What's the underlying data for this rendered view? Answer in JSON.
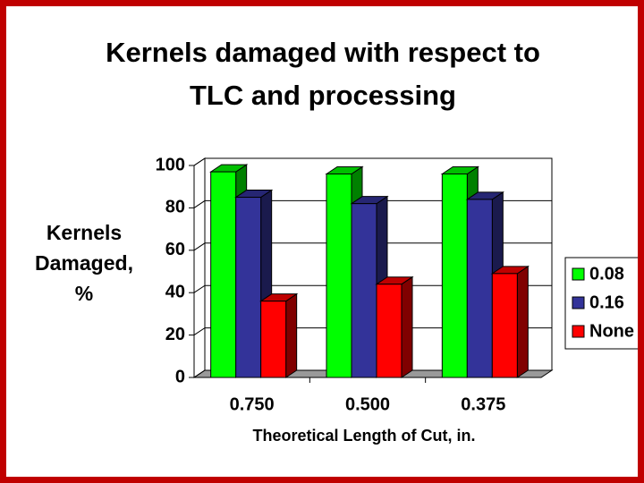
{
  "chart_data": {
    "type": "bar3d",
    "title": "Kernels damaged with respect to TLC and processing",
    "x_label": "Theoretical Length of Cut, in.",
    "y_label": "Kernels Damaged, %",
    "categories": [
      "0.750",
      "0.500",
      "0.375"
    ],
    "series": [
      {
        "name": "0.08",
        "color": "#00ff00",
        "values": [
          97,
          96,
          96
        ]
      },
      {
        "name": "0.16",
        "color": "#333399",
        "values": [
          85,
          82,
          84
        ]
      },
      {
        "name": "None",
        "color": "#ff0000",
        "values": [
          36,
          44,
          49
        ]
      }
    ],
    "ylim": [
      0,
      100
    ],
    "yticks": [
      0,
      20,
      40,
      60,
      80,
      100
    ],
    "grid": true,
    "legend": "right"
  }
}
